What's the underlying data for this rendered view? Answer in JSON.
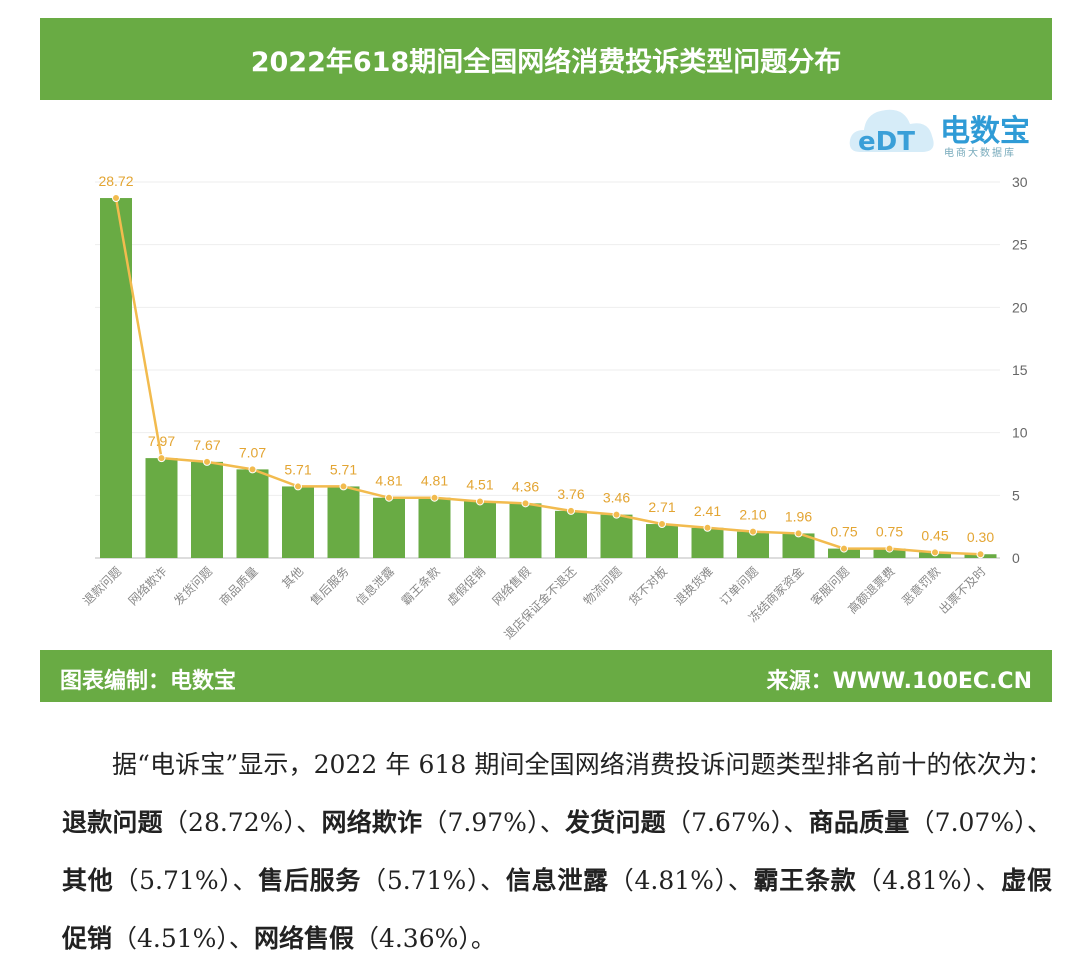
{
  "header": {
    "title": "2022年618期间全国网络消费投诉类型问题分布"
  },
  "logo": {
    "text": "电数宝",
    "sub": "电商大数据库",
    "mark": "eDT"
  },
  "footer": {
    "left": "图表编制：电数宝",
    "right": "来源：WWW.100EC.CN"
  },
  "colors": {
    "bar": "#69ab44",
    "line": "#f2bb4e",
    "label": "#e3a533",
    "header": "#69ab44"
  },
  "chart_data": {
    "type": "bar",
    "title": "2022年618期间全国网络消费投诉类型问题分布",
    "categories": [
      "退款问题",
      "网络欺诈",
      "发货问题",
      "商品质量",
      "其他",
      "售后服务",
      "信息泄露",
      "霸王条款",
      "虚假促销",
      "网络售假",
      "退店保证金不退还",
      "物流问题",
      "货不对板",
      "退换货难",
      "订单问题",
      "冻结商家资金",
      "客服问题",
      "高额退票费",
      "恶意罚款",
      "出票不及时"
    ],
    "series": [
      {
        "type": "bar",
        "values": [
          28.72,
          7.97,
          7.67,
          7.07,
          5.71,
          5.71,
          4.81,
          4.81,
          4.51,
          4.36,
          3.76,
          3.46,
          2.71,
          2.41,
          2.1,
          1.96,
          0.75,
          0.75,
          0.45,
          0.3
        ]
      },
      {
        "type": "line",
        "values": [
          28.72,
          7.97,
          7.67,
          7.07,
          5.71,
          5.71,
          4.81,
          4.81,
          4.51,
          4.36,
          3.76,
          3.46,
          2.71,
          2.41,
          2.1,
          1.96,
          0.75,
          0.75,
          0.45,
          0.3
        ]
      }
    ],
    "data_labels": [
      "28.72",
      "7.97",
      "7.67",
      "7.07",
      "5.71",
      "5.71",
      "4.81",
      "4.81",
      "4.51",
      "4.36",
      "3.76",
      "3.46",
      "2.71",
      "2.41",
      "2.10",
      "1.96",
      "0.75",
      "0.75",
      "0.45",
      "0.30"
    ],
    "ylim": [
      0,
      30
    ],
    "yticks": [
      "0",
      "5",
      "10",
      "15",
      "20",
      "25",
      "30"
    ],
    "y_axis_side": "right",
    "grid": true,
    "xlabel": "",
    "ylabel": ""
  },
  "paragraph": [
    {
      "text": "据“电诉宝”显示，2022 年 618 期间全国网络消费投诉问题类型排名前十的依次为：",
      "bold": false
    },
    {
      "text": "退款问题",
      "bold": true
    },
    {
      "text": "（28.72%）、",
      "bold": false
    },
    {
      "text": "网络欺诈",
      "bold": true
    },
    {
      "text": "（7.97%）、",
      "bold": false
    },
    {
      "text": "发货问题",
      "bold": true
    },
    {
      "text": "（7.67%）、",
      "bold": false
    },
    {
      "text": "商品质量",
      "bold": true
    },
    {
      "text": "（7.07%）、",
      "bold": false
    },
    {
      "text": "其他",
      "bold": true
    },
    {
      "text": "（5.71%）、",
      "bold": false
    },
    {
      "text": "售后服务",
      "bold": true
    },
    {
      "text": "（5.71%）、",
      "bold": false
    },
    {
      "text": "信息泄露",
      "bold": true
    },
    {
      "text": "（4.81%）、",
      "bold": false
    },
    {
      "text": "霸王条款",
      "bold": true
    },
    {
      "text": "（4.81%）、",
      "bold": false
    },
    {
      "text": "虚假促销",
      "bold": true
    },
    {
      "text": "（4.51%）、",
      "bold": false
    },
    {
      "text": "网络售假",
      "bold": true
    },
    {
      "text": "（4.36%）。",
      "bold": false
    }
  ]
}
